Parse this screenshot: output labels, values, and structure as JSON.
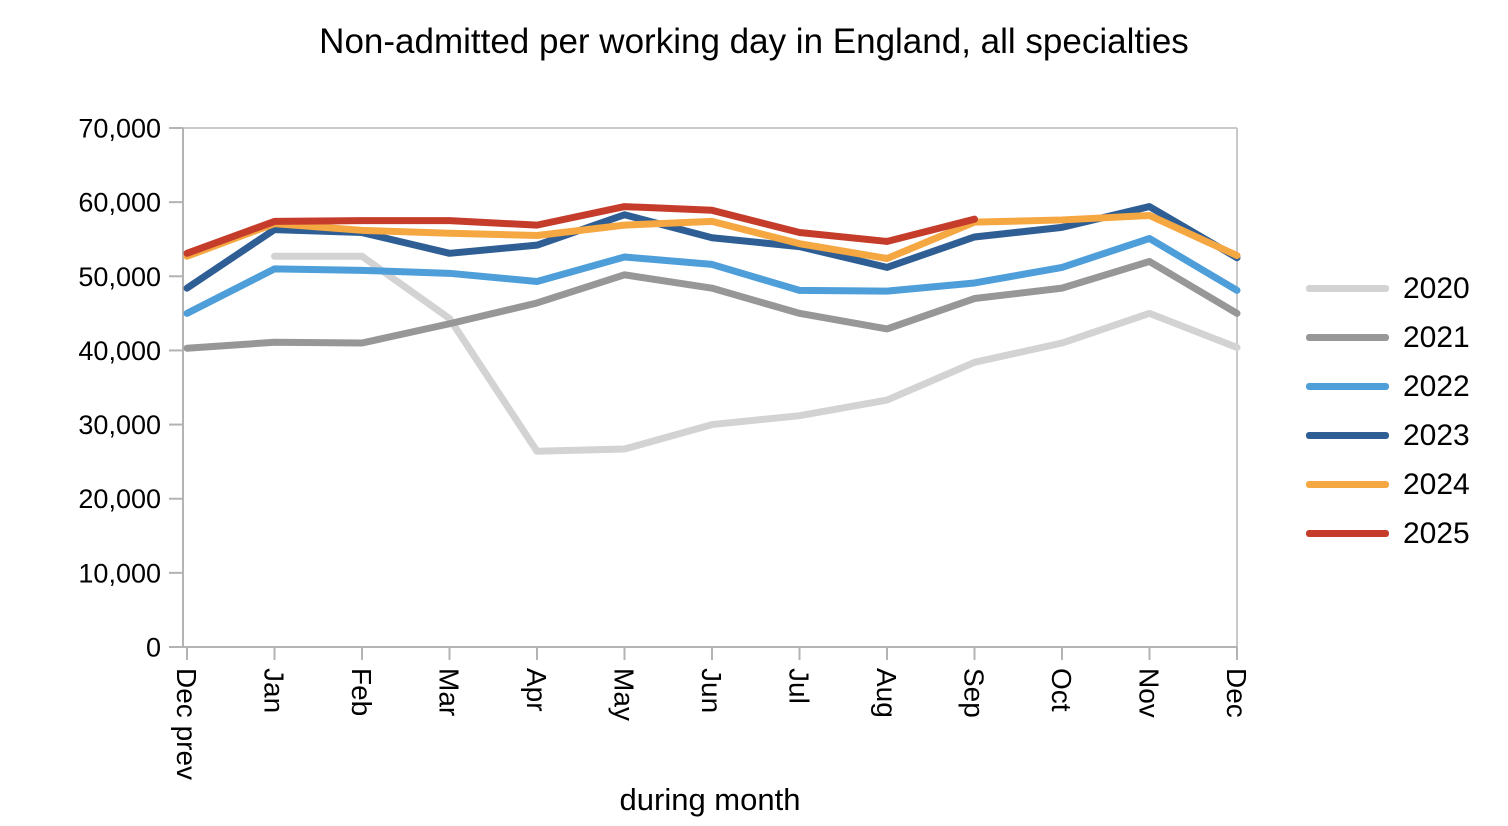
{
  "chart_data": {
    "type": "line",
    "title": "Non-admitted per working day in England, all specialties",
    "xlabel": "during month",
    "ylabel": "",
    "ylim": [
      0,
      70000
    ],
    "ytick_step": 10000,
    "ytick_labels": [
      "0",
      "10,000",
      "20,000",
      "30,000",
      "40,000",
      "50,000",
      "60,000",
      "70,000"
    ],
    "categories": [
      "Dec prev",
      "Jan",
      "Feb",
      "Mar",
      "Apr",
      "May",
      "Jun",
      "Jul",
      "Aug",
      "Sep",
      "Oct",
      "Nov",
      "Dec"
    ],
    "grid": false,
    "legend_position": "right",
    "plot_background": "#ffffff",
    "axis_color": "#b3b3b3",
    "border_color": "#c9c9c9",
    "text_color": "#000000",
    "series": [
      {
        "name": "2020",
        "color": "#d3d3d3",
        "values": [
          null,
          52700,
          52700,
          44300,
          26400,
          26700,
          30000,
          31200,
          33300,
          38400,
          41000,
          45000,
          40400
        ]
      },
      {
        "name": "2021",
        "color": "#979797",
        "values": [
          40300,
          41100,
          41000,
          43600,
          46400,
          50200,
          48400,
          45000,
          42900,
          47000,
          48400,
          52000,
          45000
        ]
      },
      {
        "name": "2022",
        "color": "#4d9ed9",
        "values": [
          45000,
          51000,
          50800,
          50400,
          49300,
          52600,
          51600,
          48100,
          48000,
          49100,
          51200,
          55100,
          48100
        ]
      },
      {
        "name": "2023",
        "color": "#2e5e94",
        "values": [
          48400,
          56300,
          55900,
          53100,
          54200,
          58300,
          55200,
          54000,
          51200,
          55300,
          56600,
          59400,
          52500
        ]
      },
      {
        "name": "2024",
        "color": "#f5a742",
        "values": [
          52700,
          57100,
          56200,
          55800,
          55500,
          56900,
          57400,
          54400,
          52400,
          57300,
          57600,
          58200,
          52800
        ]
      },
      {
        "name": "2025",
        "color": "#c53c2b",
        "values": [
          53100,
          57400,
          57500,
          57500,
          56900,
          59400,
          58900,
          55900,
          54700,
          57700,
          null,
          null,
          null
        ]
      }
    ]
  }
}
